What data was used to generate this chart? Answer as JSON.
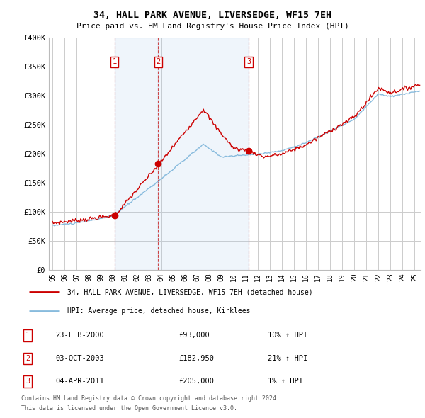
{
  "title": "34, HALL PARK AVENUE, LIVERSEDGE, WF15 7EH",
  "subtitle": "Price paid vs. HM Land Registry's House Price Index (HPI)",
  "ylim": [
    0,
    400000
  ],
  "yticks": [
    0,
    50000,
    100000,
    150000,
    200000,
    250000,
    300000,
    350000,
    400000
  ],
  "ytick_labels": [
    "£0",
    "£50K",
    "£100K",
    "£150K",
    "£200K",
    "£250K",
    "£300K",
    "£350K",
    "£400K"
  ],
  "xlim_start": 1994.7,
  "xlim_end": 2025.5,
  "background_color": "#ffffff",
  "grid_color": "#cccccc",
  "sale_points": [
    {
      "year": 2000.13,
      "price": 93000,
      "label": "1"
    },
    {
      "year": 2003.75,
      "price": 182950,
      "label": "2"
    },
    {
      "year": 2011.25,
      "price": 205000,
      "label": "3"
    }
  ],
  "shading_color": "#ddeeff",
  "legend_entries": [
    {
      "label": "34, HALL PARK AVENUE, LIVERSEDGE, WF15 7EH (detached house)",
      "color": "#cc0000",
      "lw": 1.5
    },
    {
      "label": "HPI: Average price, detached house, Kirklees",
      "color": "#88bbdd",
      "lw": 1.5
    }
  ],
  "table_rows": [
    {
      "num": "1",
      "date": "23-FEB-2000",
      "price": "£93,000",
      "hpi": "10% ↑ HPI"
    },
    {
      "num": "2",
      "date": "03-OCT-2003",
      "price": "£182,950",
      "hpi": "21% ↑ HPI"
    },
    {
      "num": "3",
      "date": "04-APR-2011",
      "price": "£205,000",
      "hpi": "1% ↑ HPI"
    }
  ],
  "footnote1": "Contains HM Land Registry data © Crown copyright and database right 2024.",
  "footnote2": "This data is licensed under the Open Government Licence v3.0.",
  "red_line_color": "#cc0000",
  "blue_line_color": "#88bbdd",
  "sale_marker_color": "#cc0000",
  "dashed_vline_color": "#cc3333"
}
